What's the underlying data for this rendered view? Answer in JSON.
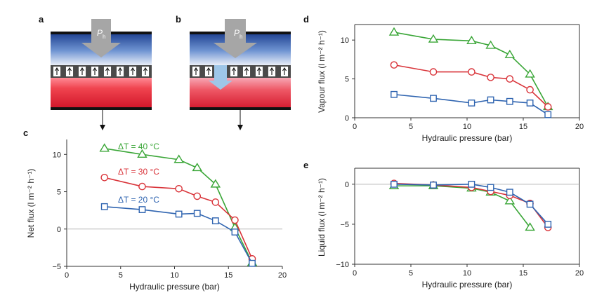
{
  "panels": {
    "a": {
      "letter": "a",
      "arrow_label": "P",
      "arrow_sub": "h"
    },
    "b": {
      "letter": "b",
      "arrow_label": "P",
      "arrow_sub": "h"
    }
  },
  "colors": {
    "green": "#3aa637",
    "red": "#d9343a",
    "blue": "#2f64b0",
    "grid": "#b9b9b9",
    "arrow_gray": "#a6a6a6",
    "light_blue": "#9ec6e8"
  },
  "chart_data": [
    {
      "panel": "c",
      "type": "line",
      "xlabel": "Hydraulic pressure (bar)",
      "ylabel": "Net flux (l m⁻² h⁻¹)",
      "xlim": [
        0,
        20
      ],
      "ylim": [
        -5,
        12
      ],
      "xticks": [
        0,
        5,
        10,
        15,
        20
      ],
      "yticks": [
        -5,
        0,
        5,
        10
      ],
      "series": [
        {
          "name": "ΔT = 40 °C",
          "color": "green",
          "marker": "triangle",
          "x": [
            3.5,
            7,
            10.4,
            12.1,
            13.8,
            15.6,
            17.2
          ],
          "y": [
            10.8,
            10.0,
            9.3,
            8.2,
            6.0,
            0.2,
            -4.5
          ]
        },
        {
          "name": "ΔT = 30 °C",
          "color": "red",
          "marker": "circle",
          "x": [
            3.5,
            7,
            10.4,
            12.1,
            13.8,
            15.6,
            17.2
          ],
          "y": [
            6.9,
            5.7,
            5.4,
            4.4,
            3.6,
            1.2,
            -4.0
          ]
        },
        {
          "name": "ΔT = 20 °C",
          "color": "blue",
          "marker": "square",
          "x": [
            3.5,
            7,
            10.4,
            12.1,
            13.8,
            15.6,
            17.2
          ],
          "y": [
            3.0,
            2.6,
            2.0,
            2.1,
            1.1,
            -0.4,
            -4.6
          ]
        }
      ]
    },
    {
      "panel": "d",
      "type": "line",
      "xlabel": "Hydraulic pressure (bar)",
      "ylabel": "Vapour flux (l m⁻² h⁻¹)",
      "xlim": [
        0,
        20
      ],
      "ylim": [
        0,
        12
      ],
      "xticks": [
        0,
        5,
        10,
        15,
        20
      ],
      "yticks": [
        0,
        5,
        10
      ],
      "series": [
        {
          "color": "green",
          "marker": "triangle",
          "x": [
            3.5,
            7,
            10.4,
            12.1,
            13.8,
            15.6,
            17.2
          ],
          "y": [
            11.0,
            10.1,
            9.9,
            9.3,
            8.1,
            5.6,
            1.4
          ]
        },
        {
          "color": "red",
          "marker": "circle",
          "x": [
            3.5,
            7,
            10.4,
            12.1,
            13.8,
            15.6,
            17.2
          ],
          "y": [
            6.8,
            5.9,
            5.9,
            5.2,
            5.0,
            3.6,
            1.4
          ]
        },
        {
          "color": "blue",
          "marker": "square",
          "x": [
            3.5,
            7,
            10.4,
            12.1,
            13.8,
            15.6,
            17.2
          ],
          "y": [
            3.0,
            2.5,
            1.9,
            2.3,
            2.1,
            1.9,
            0.4
          ]
        }
      ]
    },
    {
      "panel": "e",
      "type": "line",
      "xlabel": "Hydraulic pressure (bar)",
      "ylabel": "Liquid flux (l m⁻² h⁻¹)",
      "xlim": [
        0,
        20
      ],
      "ylim": [
        -10,
        2
      ],
      "xticks": [
        0,
        5,
        10,
        15,
        20
      ],
      "yticks": [
        -10,
        -5,
        0
      ],
      "series": [
        {
          "color": "green",
          "marker": "triangle",
          "x": [
            3.5,
            7,
            10.4,
            12.1,
            13.8,
            15.6
          ],
          "y": [
            -0.2,
            -0.2,
            -0.5,
            -1.0,
            -2.1,
            -5.4
          ]
        },
        {
          "color": "red",
          "marker": "circle",
          "x": [
            3.5,
            7,
            10.4,
            12.1,
            13.8,
            15.6,
            17.2
          ],
          "y": [
            0.1,
            -0.1,
            -0.4,
            -0.9,
            -1.4,
            -2.4,
            -5.4
          ]
        },
        {
          "color": "blue",
          "marker": "square",
          "x": [
            3.5,
            7,
            10.4,
            12.1,
            13.8,
            15.6,
            17.2
          ],
          "y": [
            0.0,
            -0.1,
            0.0,
            -0.4,
            -1.0,
            -2.5,
            -5.0
          ]
        }
      ]
    }
  ]
}
